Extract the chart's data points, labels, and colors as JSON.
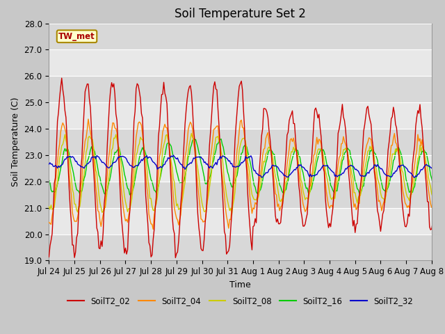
{
  "title": "Soil Temperature Set 2",
  "xlabel": "Time",
  "ylabel": "Soil Temperature (C)",
  "ylim": [
    19.0,
    28.0
  ],
  "yticks": [
    19.0,
    20.0,
    21.0,
    22.0,
    23.0,
    24.0,
    25.0,
    26.0,
    27.0,
    28.0
  ],
  "annotation": "TW_met",
  "legend_labels": [
    "SoilT2_02",
    "SoilT2_04",
    "SoilT2_08",
    "SoilT2_16",
    "SoilT2_32"
  ],
  "line_colors": [
    "#cc0000",
    "#ff8800",
    "#cccc00",
    "#00cc00",
    "#0000cc"
  ],
  "fig_bg_color": "#c8c8c8",
  "plot_bg_color": "#e0e0e0",
  "title_fontsize": 12,
  "axis_label_fontsize": 9,
  "tick_fontsize": 8.5
}
